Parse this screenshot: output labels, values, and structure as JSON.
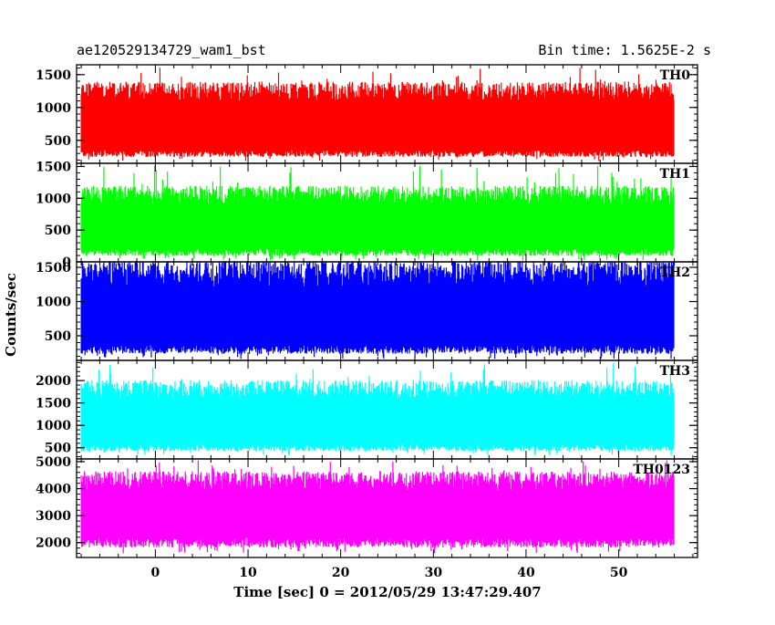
{
  "chart_data": {
    "type": "line",
    "title": "ae120529134729_wam1_bst",
    "bin_time_label": "Bin time: 1.5625E-2 s",
    "xlabel": "Time [sec] 0 = 2012/05/29 13:47:29.407",
    "ylabel": "Counts/sec",
    "xlim": [
      -8.5,
      58.5
    ],
    "x_ticks": [
      0,
      10,
      20,
      30,
      40,
      50
    ],
    "data_x_range": [
      -8.0,
      56.0
    ],
    "bin_time": 0.015625,
    "grid": false,
    "panels": [
      {
        "name": "TH0",
        "color": "#ff0000",
        "ylim": [
          150,
          1650
        ],
        "y_ticks": [
          500,
          1000,
          1500
        ],
        "series": {
          "mean": 770,
          "typical_low": 300,
          "typical_high": 1250,
          "min": 180,
          "max": 1620
        }
      },
      {
        "name": "TH1",
        "color": "#00ff00",
        "ylim": [
          0,
          1550
        ],
        "y_ticks": [
          0,
          500,
          1000,
          1500
        ],
        "series": {
          "mean": 560,
          "typical_low": 150,
          "typical_high": 1050,
          "min": 20,
          "max": 1520
        }
      },
      {
        "name": "TH2",
        "color": "#0000ff",
        "ylim": [
          140,
          1580
        ],
        "y_ticks": [
          500,
          1000,
          1500
        ],
        "series": {
          "mean": 760,
          "typical_low": 300,
          "typical_high": 1420,
          "min": 160,
          "max": 1560
        }
      },
      {
        "name": "TH3",
        "color": "#00ffff",
        "ylim": [
          250,
          2450
        ],
        "y_ticks": [
          500,
          1000,
          1500,
          2000
        ],
        "series": {
          "mean": 1100,
          "typical_low": 500,
          "typical_high": 1800,
          "min": 320,
          "max": 2400
        }
      },
      {
        "name": "TH0123",
        "color": "#ff00ff",
        "ylim": [
          1450,
          5100
        ],
        "y_ticks": [
          2000,
          3000,
          4000,
          5000
        ],
        "series": {
          "mean": 3150,
          "typical_low": 2000,
          "typical_high": 4300,
          "min": 1600,
          "max": 5050
        }
      }
    ]
  }
}
